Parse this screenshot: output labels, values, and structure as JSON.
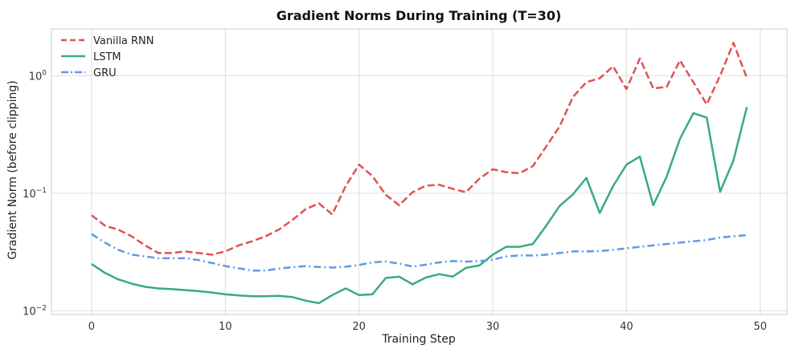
{
  "chart_data": {
    "type": "line",
    "title": "Gradient Norms During Training (T=30)",
    "xlabel": "Training Step",
    "ylabel": "Gradient Norm (before clipping)",
    "yscale": "log",
    "xlim": [
      -3,
      52
    ],
    "ylim": [
      0.0093,
      2.5
    ],
    "xticks": [
      0,
      10,
      20,
      30,
      40,
      50
    ],
    "yticks": [
      {
        "value": 0.01,
        "base": "10",
        "exp": "−2"
      },
      {
        "value": 0.1,
        "base": "10",
        "exp": "−1"
      },
      {
        "value": 1,
        "base": "10",
        "exp": "0"
      }
    ],
    "grid": true,
    "legend_position": "top-left",
    "x": [
      0,
      1,
      2,
      3,
      4,
      5,
      6,
      7,
      8,
      9,
      10,
      11,
      12,
      13,
      14,
      15,
      16,
      17,
      18,
      19,
      20,
      21,
      22,
      23,
      24,
      25,
      26,
      27,
      28,
      29,
      30,
      31,
      32,
      33,
      34,
      35,
      36,
      37,
      38,
      39,
      40,
      41,
      42,
      43,
      44,
      45,
      46,
      47,
      48,
      49
    ],
    "series": [
      {
        "name": "Vanilla RNN",
        "color": "#e05252",
        "dash": "dashed",
        "values": [
          0.065,
          0.053,
          0.049,
          0.043,
          0.036,
          0.031,
          0.031,
          0.032,
          0.031,
          0.03,
          0.032,
          0.036,
          0.039,
          0.043,
          0.049,
          0.059,
          0.073,
          0.082,
          0.066,
          0.115,
          0.175,
          0.14,
          0.097,
          0.079,
          0.102,
          0.116,
          0.118,
          0.109,
          0.102,
          0.133,
          0.16,
          0.151,
          0.148,
          0.17,
          0.25,
          0.37,
          0.66,
          0.88,
          0.95,
          1.2,
          0.77,
          1.4,
          0.78,
          0.8,
          1.35,
          0.88,
          0.57,
          1.0,
          1.9,
          0.96
        ]
      },
      {
        "name": "LSTM",
        "color": "#3aaa80",
        "dash": "solid",
        "values": [
          0.025,
          0.021,
          0.0185,
          0.017,
          0.016,
          0.0155,
          0.0153,
          0.015,
          0.0147,
          0.0143,
          0.0138,
          0.0135,
          0.0133,
          0.0133,
          0.0134,
          0.0131,
          0.0122,
          0.0116,
          0.0136,
          0.0155,
          0.0136,
          0.0138,
          0.019,
          0.0195,
          0.0168,
          0.0192,
          0.0205,
          0.0195,
          0.0232,
          0.0243,
          0.03,
          0.035,
          0.035,
          0.037,
          0.053,
          0.078,
          0.098,
          0.135,
          0.068,
          0.115,
          0.175,
          0.205,
          0.079,
          0.138,
          0.29,
          0.48,
          0.44,
          0.103,
          0.19,
          0.54
        ]
      },
      {
        "name": "GRU",
        "color": "#5b9be8",
        "dash": "dashdot",
        "values": [
          0.045,
          0.038,
          0.033,
          0.03,
          0.029,
          0.028,
          0.028,
          0.028,
          0.027,
          0.0255,
          0.024,
          0.023,
          0.022,
          0.022,
          0.0228,
          0.0235,
          0.024,
          0.0236,
          0.0233,
          0.0237,
          0.0245,
          0.0258,
          0.0262,
          0.0252,
          0.0238,
          0.0247,
          0.0258,
          0.0265,
          0.0262,
          0.0265,
          0.0272,
          0.029,
          0.0296,
          0.0295,
          0.03,
          0.031,
          0.032,
          0.032,
          0.0322,
          0.033,
          0.034,
          0.035,
          0.036,
          0.037,
          0.038,
          0.039,
          0.04,
          0.042,
          0.043,
          0.044
        ]
      }
    ]
  }
}
